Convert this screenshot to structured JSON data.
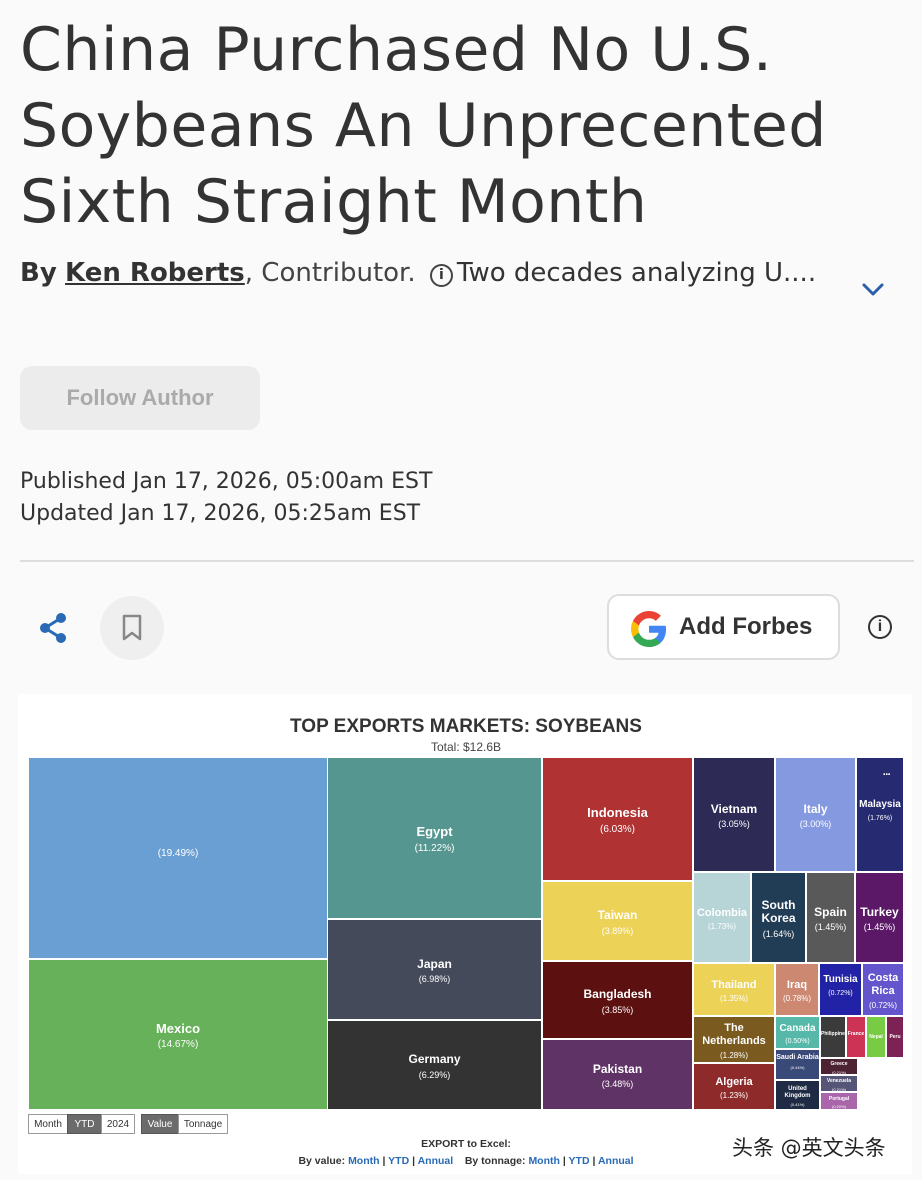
{
  "article": {
    "headline": "China Purchased No U.S. Soybeans An Unprecented Sixth Straight Month",
    "by": "By",
    "author": "Ken Roberts",
    "byline_rest": ", Contributor.",
    "info_glyph": "i",
    "author_desc": "Two decades analyzing U....",
    "follow_label": "Follow Author",
    "published": "Published Jan 17, 2026, 05:00am EST",
    "updated": "Updated Jan 17, 2026, 05:25am EST",
    "google_label": "Add Forbes",
    "info_btn": "i"
  },
  "chart_data": {
    "type": "treemap",
    "title": "TOP EXPORTS MARKETS: SOYBEANS",
    "subtitle": "Total: $12.6B",
    "menu_glyph": "...",
    "tiles": [
      {
        "name": "",
        "pct": "(19.49%)",
        "color": "#6a9fd4"
      },
      {
        "name": "Mexico",
        "pct": "(14.67%)",
        "color": "#66b15a"
      },
      {
        "name": "Egypt",
        "pct": "(11.22%)",
        "color": "#569690"
      },
      {
        "name": "Japan",
        "pct": "(6.98%)",
        "color": "#454a5a"
      },
      {
        "name": "Germany",
        "pct": "(6.29%)",
        "color": "#333333"
      },
      {
        "name": "Indonesia",
        "pct": "(6.03%)",
        "color": "#b03232"
      },
      {
        "name": "Taiwan",
        "pct": "(3.89%)",
        "color": "#ecd256"
      },
      {
        "name": "Bangladesh",
        "pct": "(3.85%)",
        "color": "#5c1010"
      },
      {
        "name": "Pakistan",
        "pct": "(3.48%)",
        "color": "#603366"
      },
      {
        "name": "Vietnam",
        "pct": "(3.05%)",
        "color": "#2d2a55"
      },
      {
        "name": "Italy",
        "pct": "(3.00%)",
        "color": "#8599e0"
      },
      {
        "name": "Malaysia",
        "pct": "(1.76%)",
        "color": "#262a70"
      },
      {
        "name": "Colombia",
        "pct": "(1.73%)",
        "color": "#b7d4d6"
      },
      {
        "name": "South Korea",
        "pct": "(1.64%)",
        "color": "#213d55"
      },
      {
        "name": "Spain",
        "pct": "(1.45%)",
        "color": "#595959"
      },
      {
        "name": "Turkey",
        "pct": "(1.45%)",
        "color": "#5b1866"
      },
      {
        "name": "Thailand",
        "pct": "(1.35%)",
        "color": "#ecd256"
      },
      {
        "name": "Iraq",
        "pct": "(0.78%)",
        "color": "#cc8870"
      },
      {
        "name": "Tunisia",
        "pct": "(0.72%)",
        "color": "#2222a6"
      },
      {
        "name": "Costa Rica",
        "pct": "(0.72%)",
        "color": "#6455cc"
      },
      {
        "name": "The Netherlands",
        "pct": "(1.28%)",
        "color": "#7a5a1f"
      },
      {
        "name": "Canada",
        "pct": "(0.50%)",
        "color": "#55b8a8"
      },
      {
        "name": "Algeria",
        "pct": "(1.23%)",
        "color": "#8f2a2a"
      },
      {
        "name": "Saudi Arabia",
        "pct": "(0.44%)",
        "color": "#3a4a78"
      },
      {
        "name": "United Kingdom",
        "pct": "(0.41%)",
        "color": "#1f2a44"
      },
      {
        "name": "Philippines",
        "pct": "",
        "color": "#3b3b3b"
      },
      {
        "name": "France",
        "pct": "",
        "color": "#cc3355"
      },
      {
        "name": "Nepal",
        "pct": "",
        "color": "#77cc44"
      },
      {
        "name": "Peru",
        "pct": "",
        "color": "#7c2255"
      },
      {
        "name": "Greece",
        "pct": "(0.21%)",
        "color": "#4d2233"
      },
      {
        "name": "Venezuela",
        "pct": "(0.21%)",
        "color": "#555577"
      },
      {
        "name": "Portugal",
        "pct": "(0.20%)",
        "color": "#aa66aa"
      }
    ]
  },
  "controls": {
    "month": "Month",
    "ytd": "YTD",
    "year": "2024",
    "value": "Value",
    "tonnage": "Tonnage"
  },
  "export": {
    "label": "EXPORT to Excel:",
    "by_value": "By value:",
    "by_tonnage": "By tonnage:",
    "month": "Month",
    "ytd": "YTD",
    "annual": "Annual",
    "sep": "|"
  },
  "watermark": "头条 @英文头条"
}
